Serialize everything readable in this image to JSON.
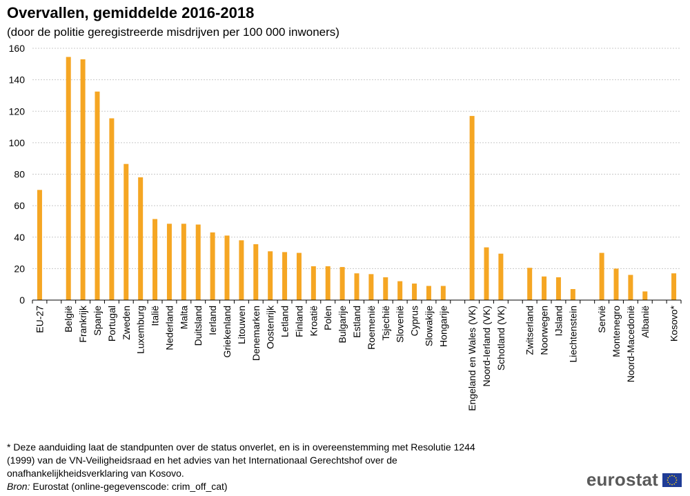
{
  "header": {
    "title": "Overvallen, gemiddelde 2016-2018",
    "subtitle": "(door de politie geregistreerde misdrijven per 100 000 inwoners)"
  },
  "footer": {
    "notes": [
      "* Deze aanduiding laat de standpunten  over de status onverlet,  en is in overeenstemming  met Resolutie  1244",
      "(1999) van de VN-Veiligheidsraad en het advies van het Internationaal  Gerechtshof over de",
      "onafhankelijkheidsverklaring  van Kosovo."
    ],
    "source_label": "Bron:",
    "source_text": " Eurostat (online-gegevenscode:  crim_off_cat)"
  },
  "logo": {
    "text": "eurostat",
    "flag_color": "#1f3c96",
    "star_color": "#ffd617"
  },
  "colors": {
    "bar": "#f5a623",
    "grid": "#c8c8c8",
    "axis": "#000000"
  },
  "chart_data": {
    "type": "bar",
    "title": "Overvallen, gemiddelde 2016-2018",
    "subtitle": "(door de politie geregistreerde misdrijven per 100 000 inwoners)",
    "xlabel": "",
    "ylabel": "",
    "ylim": [
      0,
      160
    ],
    "yticks": [
      0,
      20,
      40,
      60,
      80,
      100,
      120,
      140,
      160
    ],
    "grid": true,
    "categories": [
      "EU-27",
      "",
      "België",
      "Frankrijk",
      "Spanje",
      "Portugal",
      "Zweden",
      "Luxemburg",
      "Italië",
      "Nederland",
      "Malta",
      "Duitsland",
      "Ierland",
      "Griekenland",
      "Litouwen",
      "Denemarken",
      "Oostenrijk",
      "Letland",
      "Finland",
      "Kroatië",
      "Polen",
      "Bulgarije",
      "Estland",
      "Roemenië",
      "Tsjechië",
      "Slovenië",
      "Cyprus",
      "Slowakije",
      "Hongarije",
      "",
      "Engeland en Wales (VK)",
      "Noord-Ierland (VK)",
      "Schotland (VK)",
      "",
      "Zwitserland",
      "Noorwegen",
      "IJsland",
      "Liechtenstein",
      "",
      "Servië",
      "Montenegro",
      "Noord-Macedonië",
      "Albanië",
      "",
      "Kosovo*"
    ],
    "values": [
      70,
      null,
      154.5,
      153,
      132.5,
      115.5,
      86.5,
      78,
      51.5,
      48.5,
      48.5,
      48,
      43,
      41,
      38,
      35.5,
      31,
      30.5,
      30,
      21.5,
      21.5,
      21,
      17,
      16.5,
      14.5,
      12,
      10.5,
      9,
      9,
      null,
      117,
      33.5,
      29.5,
      null,
      20.5,
      15,
      14.5,
      7,
      null,
      30,
      20,
      16,
      5.5,
      null,
      17
    ]
  }
}
